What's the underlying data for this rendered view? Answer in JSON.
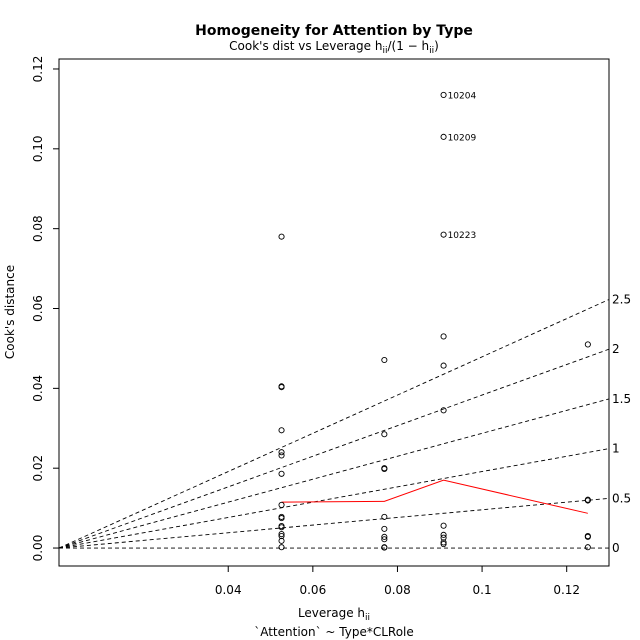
{
  "chart_data": {
    "type": "scatter",
    "title": "Homogeneity for Attention by Type",
    "subtitle": "Cook's dist vs Leverage  h",
    "subtitle_sub": "ii",
    "subtitle_mid": "/(1 − h",
    "subtitle_end": ")",
    "xlabel": "Leverage  h",
    "xlabel_sub": "ii",
    "formula": "`Attention` ~ Type*CLRole",
    "ylabel": "Cook's distance",
    "xlim": [
      0.0,
      0.13
    ],
    "ylim": [
      -0.0045,
      0.1225
    ],
    "xticks": [
      0.04,
      0.06,
      0.08,
      0.1,
      0.12
    ],
    "xtick_labels": [
      "0.04",
      "0.06",
      "0.08",
      "0.1",
      "0.12"
    ],
    "yticks": [
      0.0,
      0.02,
      0.04,
      0.06,
      0.08,
      0.1,
      0.12
    ],
    "ytick_labels": [
      "0.00",
      "0.02",
      "0.04",
      "0.06",
      "0.08",
      "0.10",
      "0.12"
    ],
    "cook_contours": {
      "p": 6,
      "values": [
        0,
        0.5,
        1,
        1.5,
        2,
        2.5
      ],
      "labels": [
        "0",
        "0.5",
        "1",
        "1.5",
        "2",
        "2.5"
      ]
    },
    "points": [
      {
        "x": 0.0526,
        "y": 0.078
      },
      {
        "x": 0.0526,
        "y": 0.0405
      },
      {
        "x": 0.0526,
        "y": 0.0403
      },
      {
        "x": 0.0526,
        "y": 0.0295
      },
      {
        "x": 0.0526,
        "y": 0.024
      },
      {
        "x": 0.0526,
        "y": 0.0232
      },
      {
        "x": 0.0526,
        "y": 0.0186
      },
      {
        "x": 0.0526,
        "y": 0.0108
      },
      {
        "x": 0.0526,
        "y": 0.0078
      },
      {
        "x": 0.0526,
        "y": 0.0075
      },
      {
        "x": 0.0526,
        "y": 0.0055
      },
      {
        "x": 0.0526,
        "y": 0.0052
      },
      {
        "x": 0.0526,
        "y": 0.0035
      },
      {
        "x": 0.0526,
        "y": 0.003
      },
      {
        "x": 0.0526,
        "y": 0.0018
      },
      {
        "x": 0.0526,
        "y": 0.0002
      },
      {
        "x": 0.0769,
        "y": 0.0471
      },
      {
        "x": 0.0769,
        "y": 0.0285
      },
      {
        "x": 0.0769,
        "y": 0.02
      },
      {
        "x": 0.0769,
        "y": 0.0198
      },
      {
        "x": 0.0769,
        "y": 0.0078
      },
      {
        "x": 0.0769,
        "y": 0.0048
      },
      {
        "x": 0.0769,
        "y": 0.0028
      },
      {
        "x": 0.0769,
        "y": 0.0022
      },
      {
        "x": 0.0769,
        "y": 0.0002
      },
      {
        "x": 0.0769,
        "y": 0.0001
      },
      {
        "x": 0.0909,
        "y": 0.1135,
        "label": "10204"
      },
      {
        "x": 0.0909,
        "y": 0.103,
        "label": "10209"
      },
      {
        "x": 0.0909,
        "y": 0.0785,
        "label": "10223"
      },
      {
        "x": 0.0909,
        "y": 0.053
      },
      {
        "x": 0.0909,
        "y": 0.0457
      },
      {
        "x": 0.0909,
        "y": 0.0345
      },
      {
        "x": 0.0909,
        "y": 0.0056
      },
      {
        "x": 0.0909,
        "y": 0.0033
      },
      {
        "x": 0.0909,
        "y": 0.0026
      },
      {
        "x": 0.0909,
        "y": 0.0014
      },
      {
        "x": 0.0909,
        "y": 0.001
      },
      {
        "x": 0.125,
        "y": 0.051
      },
      {
        "x": 0.125,
        "y": 0.0121
      },
      {
        "x": 0.125,
        "y": 0.0119
      },
      {
        "x": 0.125,
        "y": 0.003
      },
      {
        "x": 0.125,
        "y": 0.0028
      },
      {
        "x": 0.125,
        "y": 0.0002
      }
    ],
    "smooth_line": {
      "color": "#ff0000",
      "x": [
        0.0526,
        0.0769,
        0.0909,
        0.125
      ],
      "y": [
        0.0115,
        0.0117,
        0.017,
        0.0087
      ]
    }
  }
}
